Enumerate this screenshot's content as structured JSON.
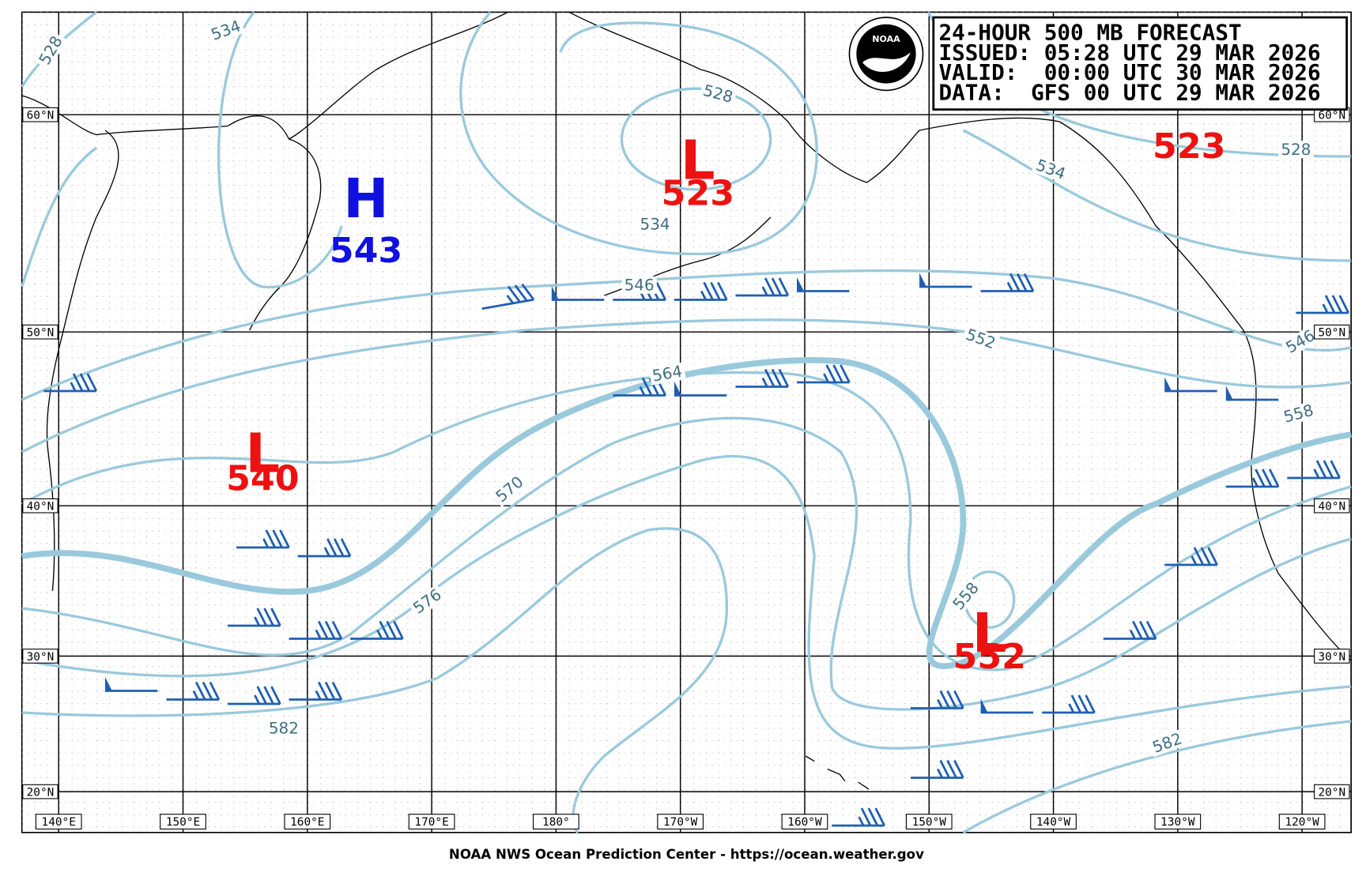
{
  "header": {
    "lines": [
      "24-HOUR 500 MB FORECAST",
      "ISSUED: 05:28 UTC 29 MAR 2026",
      "VALID:  00:00 UTC 30 MAR 2026",
      "DATA:  GFS 00 UTC 29 MAR 2026"
    ]
  },
  "logo": "NOAA",
  "lat_labels": [
    "60°N",
    "50°N",
    "40°N",
    "30°N",
    "20°N"
  ],
  "lon_labels": [
    "140°E",
    "150°E",
    "160°E",
    "170°E",
    "180°",
    "170°W",
    "160°W",
    "150°W",
    "140°W",
    "130°W",
    "120°W"
  ],
  "centers": [
    {
      "type": "H",
      "value": 543
    },
    {
      "type": "L",
      "value": 523
    },
    {
      "type": "L",
      "value": 540
    },
    {
      "type": "L",
      "value": 552
    },
    {
      "value": 523
    }
  ],
  "contour_labels": [
    528,
    534,
    528,
    534,
    546,
    552,
    564,
    570,
    576,
    582,
    558,
    582,
    534,
    528,
    558,
    546
  ],
  "footer": "NOAA NWS Ocean Prediction Center - https://ocean.weather.gov"
}
